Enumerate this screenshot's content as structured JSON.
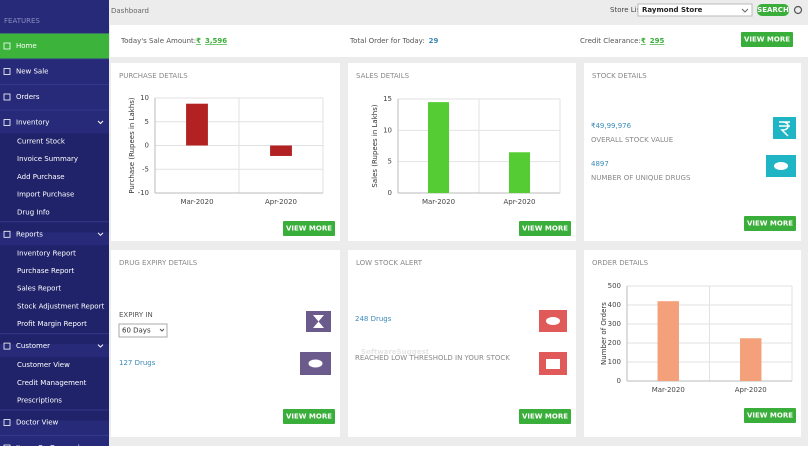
{
  "header": {
    "title": "Dashboard",
    "store_label": "Store List",
    "store": "Raymond Store",
    "search": "SEARCH"
  },
  "sidebar": {
    "heading": "FEATURES",
    "items": [
      {
        "label": "Home"
      },
      {
        "label": "New Sale"
      },
      {
        "label": "Orders"
      },
      {
        "label": "Inventory",
        "children": [
          "Current Stock",
          "Invoice Summary",
          "Add Purchase",
          "Import Purchase",
          "Drug Info"
        ]
      },
      {
        "label": "Reports",
        "children": [
          "Inventory Report",
          "Purchase Report",
          "Sales Report",
          "Stock Adjustment Report",
          "Profit Margin Report"
        ]
      },
      {
        "label": "Customer",
        "children": [
          "Customer View",
          "Credit Management",
          "Prescriptions"
        ]
      },
      {
        "label": "Doctor View"
      },
      {
        "label": "Items On Demand"
      }
    ]
  },
  "summary": {
    "sale_label": "Today's Sale Amount:",
    "currency": "₹",
    "sale_value": "3,596",
    "order_label": "Total Order for Today:",
    "order_value": "29",
    "credit_label": "Credit Clearance:",
    "credit_value": "295",
    "button": "VIEW MORE"
  },
  "purchase_details": {
    "title": "PURCHASE DETAILS",
    "button": "VIEW MORE",
    "chart": {
      "type": "bar",
      "y_label": "Purchase (Rupees in Lakhs)",
      "categories": [
        "Mar-2020",
        "Apr-2020"
      ],
      "values": [
        8.8,
        -2.2
      ],
      "color": "#b22222",
      "ylim": [
        -10,
        10
      ],
      "yticks": [
        -10,
        -5,
        0,
        5,
        10
      ]
    }
  },
  "sales_details": {
    "title": "SALES DETAILS",
    "button": "VIEW MORE",
    "chart": {
      "type": "bar",
      "y_label": "Sales (Rupees in Lakhs)",
      "categories": [
        "Mar-2020",
        "Apr-2020"
      ],
      "values": [
        14.5,
        6.5
      ],
      "color": "#55cc33",
      "ylim": [
        0,
        15
      ],
      "yticks": [
        0,
        5,
        10,
        15
      ]
    }
  },
  "stock_details": {
    "title": "STOCK DETAILS",
    "stock_value": "₹49,99,976",
    "stock_value_label": "OVERALL STOCK VALUE",
    "unique_drugs": "4897",
    "unique_drugs_label": "NUMBER OF UNIQUE DRUGS",
    "button": "VIEW MORE"
  },
  "drug_expiry": {
    "title": "DRUG EXPIRY DETAILS",
    "expiry_label": "EXPIRY IN",
    "expiry_select": "60 Days",
    "drugs": "127 Drugs",
    "button": "VIEW MORE"
  },
  "low_stock": {
    "title": "LOW STOCK ALERT",
    "drugs": "248 Drugs",
    "note": "REACHED LOW THRESHOLD IN YOUR STOCK",
    "button": "VIEW MORE"
  },
  "order_details": {
    "title": "ORDER DETAILS",
    "button": "VIEW MORE",
    "chart": {
      "type": "bar",
      "y_label": "Number of Orders",
      "categories": [
        "Mar-2020",
        "Apr-2020"
      ],
      "values": [
        420,
        225
      ],
      "color": "#f4a07a",
      "ylim": [
        0,
        500
      ],
      "yticks": [
        0,
        100,
        200,
        300,
        400,
        500
      ]
    }
  },
  "watermark": "SoftwareSuggest"
}
